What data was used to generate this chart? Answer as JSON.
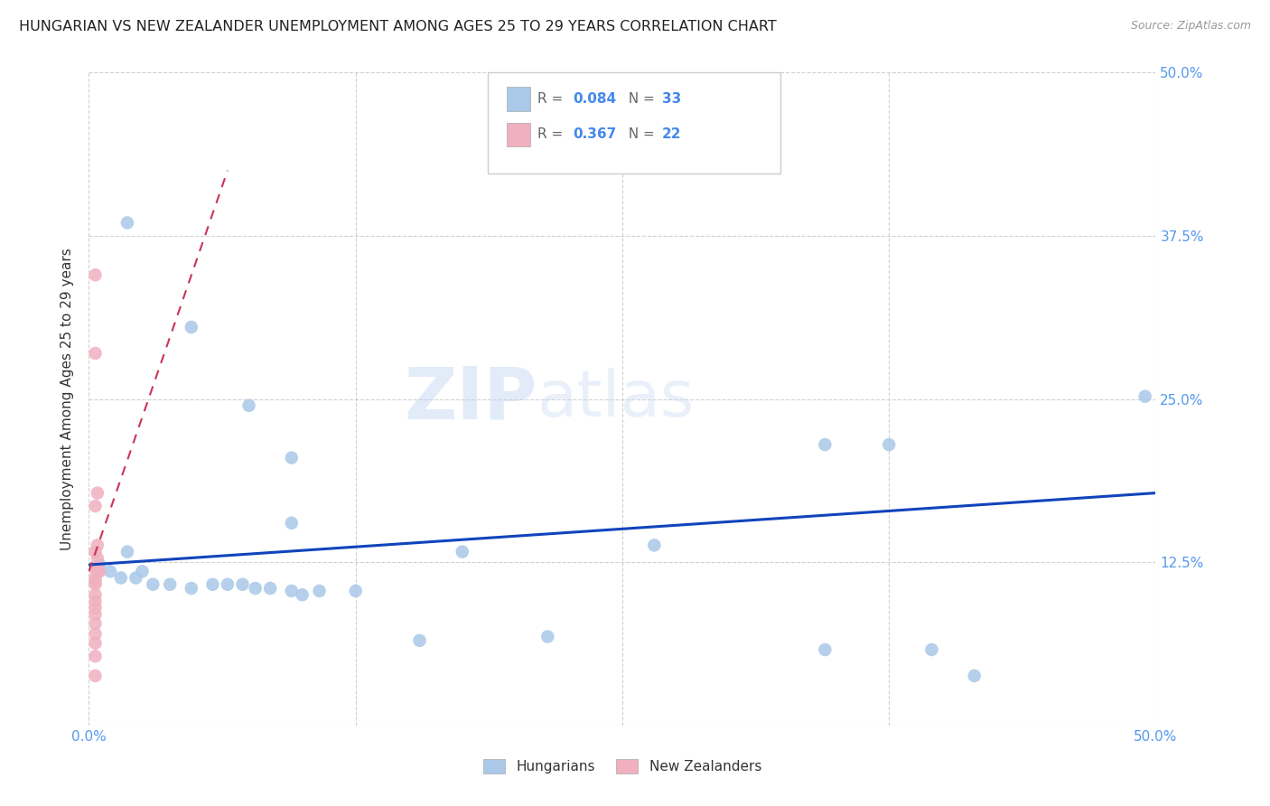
{
  "title": "HUNGARIAN VS NEW ZEALANDER UNEMPLOYMENT AMONG AGES 25 TO 29 YEARS CORRELATION CHART",
  "source": "Source: ZipAtlas.com",
  "ylabel": "Unemployment Among Ages 25 to 29 years",
  "xlim": [
    0,
    0.5
  ],
  "ylim": [
    0,
    0.5
  ],
  "xticks": [
    0.0,
    0.125,
    0.25,
    0.375,
    0.5
  ],
  "yticks": [
    0.0,
    0.125,
    0.25,
    0.375,
    0.5
  ],
  "grid_color": "#d0d0d0",
  "background_color": "#ffffff",
  "legend_R_blue": "0.084",
  "legend_N_blue": "33",
  "legend_R_pink": "0.367",
  "legend_N_pink": "22",
  "blue_color": "#aac8e8",
  "pink_color": "#f0b0c0",
  "blue_line_color": "#1144bb",
  "pink_line_color": "#cc3355",
  "blue_scatter": [
    [
      0.018,
      0.385
    ],
    [
      0.048,
      0.305
    ],
    [
      0.075,
      0.245
    ],
    [
      0.095,
      0.205
    ],
    [
      0.095,
      0.155
    ],
    [
      0.175,
      0.133
    ],
    [
      0.265,
      0.138
    ],
    [
      0.345,
      0.215
    ],
    [
      0.495,
      0.252
    ],
    [
      0.375,
      0.215
    ],
    [
      0.018,
      0.133
    ],
    [
      0.025,
      0.118
    ],
    [
      0.005,
      0.123
    ],
    [
      0.01,
      0.118
    ],
    [
      0.015,
      0.113
    ],
    [
      0.022,
      0.113
    ],
    [
      0.03,
      0.108
    ],
    [
      0.038,
      0.108
    ],
    [
      0.048,
      0.105
    ],
    [
      0.058,
      0.108
    ],
    [
      0.065,
      0.108
    ],
    [
      0.072,
      0.108
    ],
    [
      0.078,
      0.105
    ],
    [
      0.085,
      0.105
    ],
    [
      0.095,
      0.103
    ],
    [
      0.1,
      0.1
    ],
    [
      0.108,
      0.103
    ],
    [
      0.125,
      0.103
    ],
    [
      0.155,
      0.065
    ],
    [
      0.215,
      0.068
    ],
    [
      0.345,
      0.058
    ],
    [
      0.395,
      0.058
    ],
    [
      0.415,
      0.038
    ]
  ],
  "pink_scatter": [
    [
      0.003,
      0.345
    ],
    [
      0.003,
      0.285
    ],
    [
      0.004,
      0.178
    ],
    [
      0.003,
      0.168
    ],
    [
      0.004,
      0.138
    ],
    [
      0.004,
      0.128
    ],
    [
      0.003,
      0.133
    ],
    [
      0.003,
      0.12
    ],
    [
      0.004,
      0.118
    ],
    [
      0.005,
      0.118
    ],
    [
      0.003,
      0.113
    ],
    [
      0.003,
      0.11
    ],
    [
      0.003,
      0.108
    ],
    [
      0.003,
      0.1
    ],
    [
      0.003,
      0.095
    ],
    [
      0.003,
      0.09
    ],
    [
      0.003,
      0.085
    ],
    [
      0.003,
      0.078
    ],
    [
      0.003,
      0.07
    ],
    [
      0.003,
      0.063
    ],
    [
      0.003,
      0.053
    ],
    [
      0.003,
      0.038
    ]
  ],
  "blue_trend_x": [
    0.0,
    0.5
  ],
  "blue_trend_y": [
    0.123,
    0.178
  ],
  "pink_trend_x": [
    0.0,
    0.065
  ],
  "pink_trend_y": [
    0.118,
    0.425
  ]
}
